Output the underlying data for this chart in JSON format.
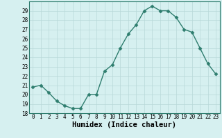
{
  "x": [
    0,
    1,
    2,
    3,
    4,
    5,
    6,
    7,
    8,
    9,
    10,
    11,
    12,
    13,
    14,
    15,
    16,
    17,
    18,
    19,
    20,
    21,
    22,
    23
  ],
  "y": [
    20.8,
    21.0,
    20.2,
    19.3,
    18.8,
    18.5,
    18.5,
    20.0,
    20.0,
    22.5,
    23.2,
    25.0,
    26.5,
    27.5,
    29.0,
    29.5,
    29.0,
    29.0,
    28.3,
    27.0,
    26.7,
    25.0,
    23.3,
    22.2
  ],
  "line_color": "#2e7d6e",
  "marker": "D",
  "marker_size": 2.5,
  "bg_color": "#d6f0f0",
  "grid_color": "#b8d8d8",
  "xlabel": "Humidex (Indice chaleur)",
  "xlim": [
    -0.5,
    23.5
  ],
  "ylim": [
    18,
    30
  ],
  "yticks": [
    18,
    19,
    20,
    21,
    22,
    23,
    24,
    25,
    26,
    27,
    28,
    29
  ],
  "xticks": [
    0,
    1,
    2,
    3,
    4,
    5,
    6,
    7,
    8,
    9,
    10,
    11,
    12,
    13,
    14,
    15,
    16,
    17,
    18,
    19,
    20,
    21,
    22,
    23
  ],
  "tick_label_fontsize": 5.5,
  "xlabel_fontsize": 7.5,
  "line_width": 1.0,
  "spine_color": "#2e7d6e"
}
